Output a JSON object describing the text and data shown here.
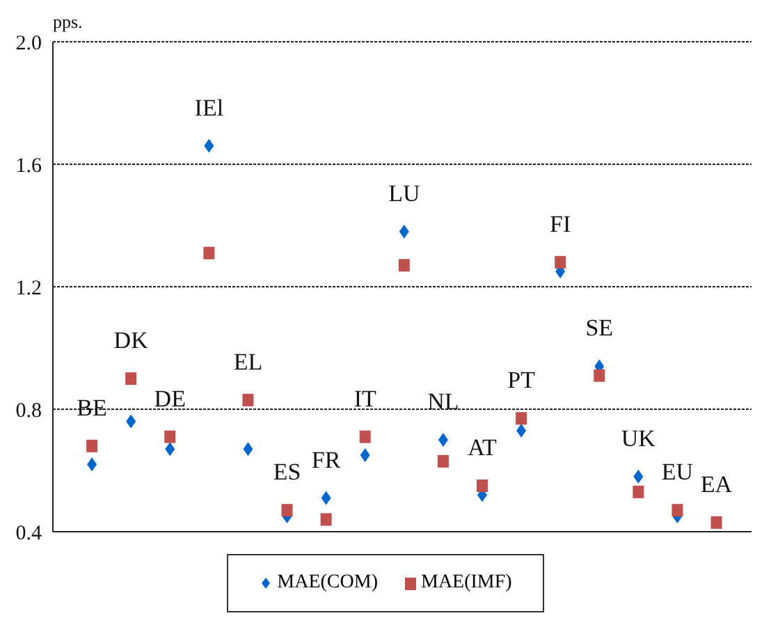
{
  "chart_data": {
    "type": "scatter",
    "ylabel": "pps.",
    "categories": [
      "BE",
      "DK",
      "DE",
      "IEl",
      "EL",
      "ES",
      "FR",
      "IT",
      "LU",
      "NL",
      "AT",
      "PT",
      "FI",
      "SE",
      "UK",
      "EU",
      "EA"
    ],
    "series": [
      {
        "name": "MAE(COM)",
        "color": "#0066cc",
        "marker": "diamond",
        "values": [
          0.62,
          0.76,
          0.67,
          1.66,
          0.67,
          0.45,
          0.51,
          0.65,
          1.38,
          0.7,
          0.52,
          0.73,
          1.25,
          0.94,
          0.58,
          0.45,
          null
        ]
      },
      {
        "name": "MAE(IMF)",
        "color": "#c0504d",
        "marker": "square",
        "values": [
          0.68,
          0.9,
          0.71,
          1.31,
          0.83,
          0.47,
          0.44,
          0.71,
          1.27,
          0.63,
          0.55,
          0.77,
          1.28,
          0.91,
          0.53,
          0.47,
          0.43
        ]
      }
    ],
    "ylim": [
      0.4,
      2.0
    ],
    "yticks": [
      {
        "value": 0.4,
        "label": "0.4"
      },
      {
        "value": 0.8,
        "label": "0.8"
      },
      {
        "value": 1.2,
        "label": "1.2"
      },
      {
        "value": 1.6,
        "label": "1.6"
      },
      {
        "value": 2.0,
        "label": "2.0"
      }
    ],
    "grid": "y",
    "legend": "bottom",
    "tick_labels": "y"
  }
}
